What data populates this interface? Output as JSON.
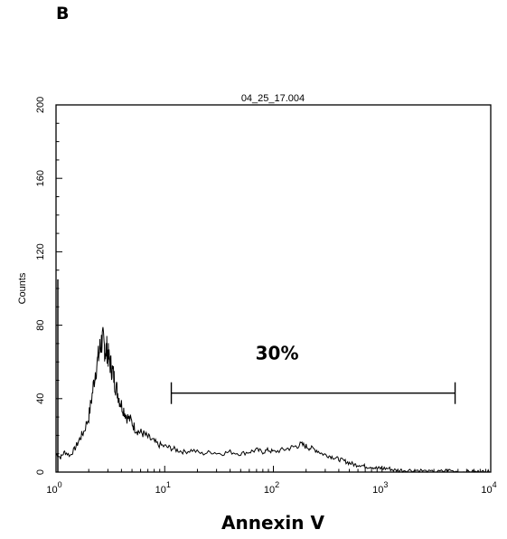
{
  "panel_label": "B",
  "chart_data": {
    "type": "histogram",
    "title": "04_25_17.004",
    "xlabel": "Annexin V",
    "ylabel": "Counts",
    "x_scale": "log",
    "xlim": [
      1,
      10000
    ],
    "ylim": [
      0,
      200
    ],
    "y_ticks": [
      0,
      40,
      80,
      120,
      160,
      200
    ],
    "y_tick_labels": [
      "0",
      "40",
      "80",
      "120",
      "160",
      "200"
    ],
    "x_ticks": [
      1,
      10,
      100,
      1000,
      10000
    ],
    "x_tick_base_labels": [
      "10",
      "10",
      "10",
      "10",
      "10"
    ],
    "x_tick_exponents": [
      "0",
      "1",
      "2",
      "3",
      "4"
    ],
    "grid": false,
    "series": [
      {
        "x": [
          1.0,
          1.1,
          1.2,
          1.35,
          1.5,
          1.65,
          1.8,
          2.0,
          2.15,
          2.3,
          2.45,
          2.55,
          2.65,
          2.75,
          2.85,
          2.95,
          3.05,
          3.2,
          3.35,
          3.5,
          3.7,
          3.9,
          4.2,
          4.5,
          4.9,
          5.3,
          5.8,
          6.3,
          7.0,
          7.8,
          8.7,
          10,
          11.5,
          13,
          15,
          18,
          22,
          27,
          33,
          40,
          50,
          60,
          70,
          80,
          90,
          100,
          120,
          140,
          160,
          180,
          200,
          220,
          250,
          280,
          320,
          360,
          400,
          450,
          500,
          560,
          630,
          700,
          800,
          900,
          1000,
          1150,
          1300,
          1500,
          1800,
          2200,
          2700,
          3300,
          4000,
          5000,
          6000,
          7000,
          8000,
          9000,
          10000
        ],
        "y": [
          10,
          8,
          11,
          9,
          13,
          18,
          22,
          30,
          42,
          55,
          62,
          68,
          72,
          70,
          66,
          67,
          62,
          58,
          54,
          48,
          43,
          38,
          34,
          30,
          28,
          24,
          22,
          21,
          19,
          17,
          15,
          14,
          13,
          12,
          11,
          12,
          10,
          11,
          10,
          11,
          10,
          11,
          12,
          11,
          12,
          11,
          12,
          13,
          14,
          15,
          14,
          13,
          12,
          10,
          9,
          8,
          7,
          6,
          5,
          4,
          4,
          3,
          3,
          2,
          2,
          2,
          1,
          1,
          1,
          1,
          0,
          0,
          1,
          0,
          0,
          0,
          0,
          0,
          0
        ]
      }
    ],
    "spike_at_min": {
      "x": 1.0,
      "y": 105
    },
    "annotations": [
      {
        "type": "gate",
        "label": "30%",
        "x_start": 11.5,
        "x_end": 4700,
        "y": 43
      }
    ]
  }
}
